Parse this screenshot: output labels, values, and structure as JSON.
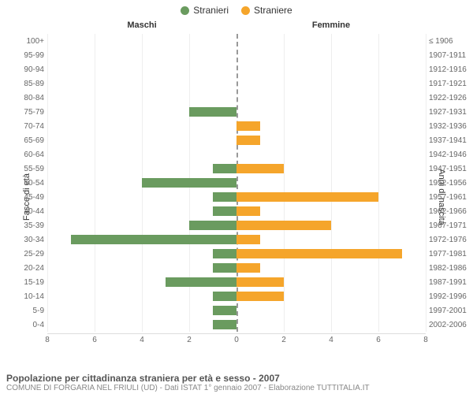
{
  "chart": {
    "type": "pyramid-bar",
    "legend": {
      "male": {
        "label": "Stranieri",
        "color": "#6a9b5f"
      },
      "female": {
        "label": "Straniere",
        "color": "#f5a52b"
      }
    },
    "section_labels": {
      "left": "Maschi",
      "right": "Femmine"
    },
    "y_left_title": "Fasce di età",
    "y_right_title": "Anni di nascita",
    "x_max": 8,
    "x_ticks": [
      8,
      6,
      4,
      2,
      0,
      2,
      4,
      6,
      8
    ],
    "grid_positions": [
      0,
      12.5,
      25,
      37.5,
      62.5,
      75,
      87.5,
      100
    ],
    "bar_height_pct": 70,
    "background_color": "#ffffff",
    "grid_color": "#eeeeee",
    "axis_text_color": "#666666",
    "rows": [
      {
        "age": "100+",
        "birth": "≤ 1906",
        "m": 0,
        "f": 0
      },
      {
        "age": "95-99",
        "birth": "1907-1911",
        "m": 0,
        "f": 0
      },
      {
        "age": "90-94",
        "birth": "1912-1916",
        "m": 0,
        "f": 0
      },
      {
        "age": "85-89",
        "birth": "1917-1921",
        "m": 0,
        "f": 0
      },
      {
        "age": "80-84",
        "birth": "1922-1926",
        "m": 0,
        "f": 0
      },
      {
        "age": "75-79",
        "birth": "1927-1931",
        "m": 2,
        "f": 0
      },
      {
        "age": "70-74",
        "birth": "1932-1936",
        "m": 0,
        "f": 1
      },
      {
        "age": "65-69",
        "birth": "1937-1941",
        "m": 0,
        "f": 1
      },
      {
        "age": "60-64",
        "birth": "1942-1946",
        "m": 0,
        "f": 0
      },
      {
        "age": "55-59",
        "birth": "1947-1951",
        "m": 1,
        "f": 2
      },
      {
        "age": "50-54",
        "birth": "1952-1956",
        "m": 4,
        "f": 0
      },
      {
        "age": "45-49",
        "birth": "1957-1961",
        "m": 1,
        "f": 6
      },
      {
        "age": "40-44",
        "birth": "1962-1966",
        "m": 1,
        "f": 1
      },
      {
        "age": "35-39",
        "birth": "1967-1971",
        "m": 2,
        "f": 4
      },
      {
        "age": "30-34",
        "birth": "1972-1976",
        "m": 7,
        "f": 1
      },
      {
        "age": "25-29",
        "birth": "1977-1981",
        "m": 1,
        "f": 7
      },
      {
        "age": "20-24",
        "birth": "1982-1986",
        "m": 1,
        "f": 1
      },
      {
        "age": "15-19",
        "birth": "1987-1991",
        "m": 3,
        "f": 2
      },
      {
        "age": "10-14",
        "birth": "1992-1996",
        "m": 1,
        "f": 2
      },
      {
        "age": "5-9",
        "birth": "1997-2001",
        "m": 1,
        "f": 0
      },
      {
        "age": "0-4",
        "birth": "2002-2006",
        "m": 1,
        "f": 0
      }
    ]
  },
  "footer": {
    "title": "Popolazione per cittadinanza straniera per età e sesso - 2007",
    "sub": "COMUNE DI FORGARIA NEL FRIULI (UD) - Dati ISTAT 1° gennaio 2007 - Elaborazione TUTTITALIA.IT"
  }
}
